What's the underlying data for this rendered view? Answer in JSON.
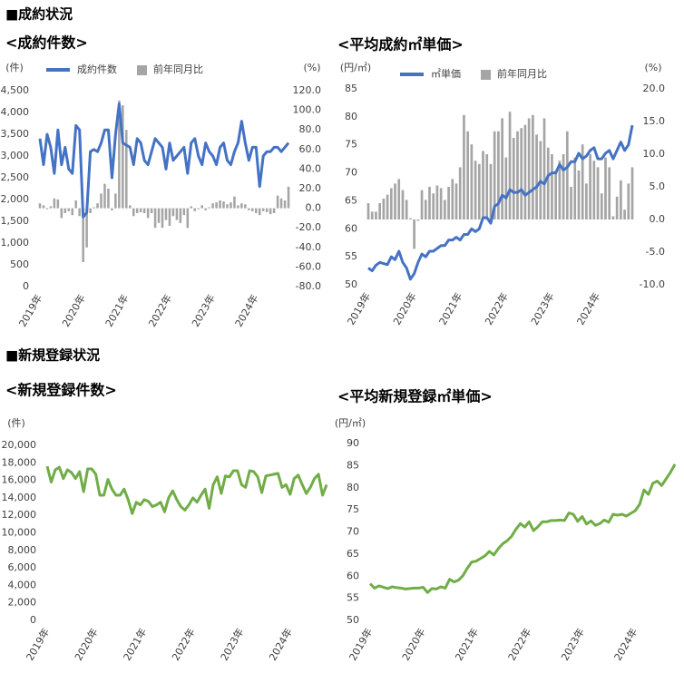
{
  "sections": [
    "■成約状況",
    "■新規登録状況"
  ],
  "chart_data": [
    {
      "type": "combo",
      "title": "<成約件数>",
      "y_unit": "(件)",
      "y2_unit": "(%)",
      "categories": [
        "2019年",
        null,
        null,
        null,
        null,
        null,
        null,
        null,
        null,
        null,
        null,
        null,
        "2020年",
        null,
        null,
        null,
        null,
        null,
        null,
        null,
        null,
        null,
        null,
        null,
        "2021年",
        null,
        null,
        null,
        null,
        null,
        null,
        null,
        null,
        null,
        null,
        null,
        "2022年",
        null,
        null,
        null,
        null,
        null,
        null,
        null,
        null,
        null,
        null,
        null,
        "2023年",
        null,
        null,
        null,
        null,
        null,
        null,
        null,
        null,
        null,
        null,
        null,
        "2024年",
        null,
        null,
        null,
        null,
        null,
        null,
        null,
        null,
        null
      ],
      "series": [
        {
          "name": "成約件数",
          "type": "line",
          "color": "#4472c4",
          "values": [
            3400,
            2800,
            3500,
            3200,
            2600,
            3600,
            2800,
            3200,
            2700,
            2600,
            3700,
            3600,
            1600,
            1700,
            3100,
            3150,
            3100,
            3300,
            3600,
            3600,
            2500,
            3500,
            4200,
            3300,
            3250,
            3200,
            2800,
            3400,
            3300,
            2900,
            2800,
            3100,
            3400,
            3300,
            3200,
            2700,
            3300,
            2900,
            3000,
            3100,
            3200,
            2600,
            3300,
            3400,
            3000,
            2800,
            3300,
            3100,
            3000,
            2800,
            3200,
            3300,
            2900,
            2800,
            3100,
            3300,
            3800,
            3300,
            2900,
            3200,
            3200,
            2300,
            3000,
            3100,
            3100,
            3200,
            3200,
            3100,
            3200,
            3300
          ]
        },
        {
          "name": "前年同月比",
          "type": "bar",
          "axis": "y2",
          "color": "#a5a5a5",
          "values": [
            5,
            3,
            -1,
            2,
            10,
            9,
            -10,
            -5,
            -3,
            -7,
            8,
            -8,
            -55,
            -40,
            -5,
            1,
            5,
            15,
            25,
            20,
            -2,
            15,
            110,
            105,
            80,
            3,
            -8,
            -5,
            -4,
            -5,
            -10,
            -5,
            -20,
            -15,
            -20,
            -12,
            -18,
            -8,
            -12,
            -15,
            -7,
            -20,
            2,
            -3,
            -1,
            3,
            -2,
            1,
            5,
            6,
            8,
            7,
            4,
            6,
            12,
            3,
            5,
            4,
            -2,
            -3,
            -5,
            -7,
            -3,
            -4,
            -6,
            -5,
            13,
            10,
            8,
            22
          ]
        }
      ],
      "ylim": [
        0,
        4500
      ],
      "yticks": [
        0,
        500,
        {
          "value": 1000,
          "label": "1,000"
        },
        {
          "value": 1500,
          "label": "1,500"
        },
        {
          "value": 2000,
          "label": "2,000"
        },
        {
          "value": 2500,
          "label": "2,500"
        },
        {
          "value": 3000,
          "label": "3,000"
        },
        {
          "value": 3500,
          "label": "3,500"
        },
        {
          "value": 4000,
          "label": "4,000"
        },
        {
          "value": 4500,
          "label": "4,500"
        }
      ],
      "y2lim": [
        -80,
        120
      ],
      "y2ticks": [
        {
          "value": -80,
          "label": "-80.0"
        },
        {
          "value": -60,
          "label": "-60.0"
        },
        {
          "value": -40,
          "label": "-40.0"
        },
        {
          "value": -20,
          "label": "-20.0"
        },
        {
          "value": 0,
          "label": "0.0"
        },
        {
          "value": 20,
          "label": "20.0"
        },
        {
          "value": 40,
          "label": "40.0"
        },
        {
          "value": 60,
          "label": "60.0"
        },
        {
          "value": 80,
          "label": "80.0"
        },
        {
          "value": 100,
          "label": "100.0"
        },
        {
          "value": 120,
          "label": "120.0"
        }
      ],
      "y2_negative_color": "#ff0000"
    },
    {
      "type": "combo",
      "title": "<平均成約㎡単価>",
      "y_unit": "(円/㎡)",
      "y2_unit": "(%)",
      "categories": [
        "2019年",
        null,
        null,
        null,
        null,
        null,
        null,
        null,
        null,
        null,
        null,
        null,
        "2020年",
        null,
        null,
        null,
        null,
        null,
        null,
        null,
        null,
        null,
        null,
        null,
        "2021年",
        null,
        null,
        null,
        null,
        null,
        null,
        null,
        null,
        null,
        null,
        null,
        "2022年",
        null,
        null,
        null,
        null,
        null,
        null,
        null,
        null,
        null,
        null,
        null,
        "2023年",
        null,
        null,
        null,
        null,
        null,
        null,
        null,
        null,
        null,
        null,
        null,
        "2024年",
        null,
        null,
        null,
        null,
        null,
        null,
        null,
        null,
        null
      ],
      "series": [
        {
          "name": "㎡単価",
          "type": "line",
          "color": "#4472c4",
          "values": [
            53,
            52.5,
            53.5,
            54,
            53.8,
            53.6,
            55,
            54.5,
            56,
            54,
            53,
            51,
            52,
            54,
            55.5,
            55,
            56,
            56,
            56.5,
            57,
            57,
            58,
            58,
            58.5,
            58,
            59,
            59,
            60,
            59.5,
            60,
            62,
            62,
            61,
            64,
            64.5,
            66,
            65.5,
            67,
            66.5,
            66.5,
            67,
            66,
            66.5,
            67,
            67.5,
            68.5,
            68,
            69.5,
            70,
            70,
            71.5,
            70.5,
            71,
            72,
            72,
            73.5,
            72.5,
            73,
            74,
            74.5,
            72.5,
            72.5,
            73.5,
            74,
            72.5,
            74,
            75.5,
            74,
            75,
            78.5
          ]
        },
        {
          "name": "前年同月比",
          "type": "bar",
          "axis": "y2",
          "color": "#a5a5a5",
          "values": [
            2.5,
            1.2,
            1.2,
            2.5,
            3.2,
            3.8,
            4.8,
            5.5,
            6.2,
            4.5,
            3,
            0.2,
            -4.5,
            -0.2,
            4.5,
            3,
            5,
            4,
            5.2,
            4.8,
            3,
            5,
            6.2,
            5.5,
            8,
            16,
            13.5,
            11.5,
            9,
            8.5,
            10.5,
            10,
            8.5,
            13.5,
            13.5,
            15.5,
            9.5,
            16.5,
            12.5,
            13.5,
            14,
            14.5,
            15.5,
            16,
            13,
            12,
            15.5,
            11,
            10,
            7.5,
            9,
            10,
            13.5,
            5,
            9.5,
            7.5,
            11.5,
            5.5,
            10,
            9,
            8,
            4,
            9.5,
            8,
            0.5,
            3.5,
            6,
            1.5,
            5.5,
            8
          ]
        }
      ],
      "ylim": [
        50,
        85
      ],
      "yticks": [
        50,
        55,
        60,
        65,
        70,
        75,
        80,
        85
      ],
      "y2lim": [
        -10,
        20
      ],
      "y2ticks": [
        {
          "value": -10,
          "label": "-10.0"
        },
        {
          "value": -5,
          "label": "-5.0"
        },
        {
          "value": 0,
          "label": "0.0"
        },
        {
          "value": 5,
          "label": "5.0"
        },
        {
          "value": 10,
          "label": "10.0"
        },
        {
          "value": 15,
          "label": "15.0"
        },
        {
          "value": 20,
          "label": "20.0"
        }
      ],
      "y2_negative_color": "#ff0000"
    },
    {
      "type": "line",
      "title": "<新規登録件数>",
      "y_unit": "(件)",
      "categories": [
        "2019年",
        null,
        null,
        null,
        null,
        null,
        null,
        null,
        null,
        null,
        null,
        null,
        "2020年",
        null,
        null,
        null,
        null,
        null,
        null,
        null,
        null,
        null,
        null,
        null,
        "2021年",
        null,
        null,
        null,
        null,
        null,
        null,
        null,
        null,
        null,
        null,
        null,
        "2022年",
        null,
        null,
        null,
        null,
        null,
        null,
        null,
        null,
        null,
        null,
        null,
        "2023年",
        null,
        null,
        null,
        null,
        null,
        null,
        null,
        null,
        null,
        null,
        null,
        "2024年",
        null,
        null,
        null,
        null,
        null,
        null,
        null,
        null,
        null
      ],
      "series": [
        {
          "type": "line",
          "color": "#70ad47",
          "values": [
            17600,
            15800,
            17200,
            17500,
            16200,
            17200,
            16900,
            16200,
            17000,
            14700,
            17300,
            17300,
            16700,
            14300,
            14300,
            16100,
            15000,
            14300,
            14300,
            15000,
            13800,
            12200,
            13500,
            13200,
            13800,
            13600,
            13000,
            13200,
            13500,
            12400,
            14000,
            14800,
            13800,
            13000,
            12600,
            13200,
            14000,
            13500,
            14300,
            15000,
            12800,
            15500,
            16400,
            14500,
            16500,
            16400,
            17100,
            17100,
            15500,
            15200,
            17100,
            17000,
            16400,
            14600,
            16500,
            16600,
            16700,
            16800,
            15200,
            15500,
            14400,
            16200,
            16600,
            15500,
            14500,
            15200,
            16200,
            16700,
            14300,
            15500
          ]
        }
      ],
      "ylim": [
        0,
        20000
      ],
      "yticks": [
        0,
        {
          "value": 2000,
          "label": "2,000"
        },
        {
          "value": 4000,
          "label": "4,000"
        },
        {
          "value": 6000,
          "label": "6,000"
        },
        {
          "value": 8000,
          "label": "8,000"
        },
        {
          "value": 10000,
          "label": "10,000"
        },
        {
          "value": 12000,
          "label": "12,000"
        },
        {
          "value": 14000,
          "label": "14,000"
        },
        {
          "value": 16000,
          "label": "16,000"
        },
        {
          "value": 18000,
          "label": "18,000"
        },
        {
          "value": 20000,
          "label": "20,000"
        }
      ]
    },
    {
      "type": "line",
      "title": "<平均新規登録㎡単価>",
      "y_unit": "(円/㎡)",
      "categories": [
        "2019年",
        null,
        null,
        null,
        null,
        null,
        null,
        null,
        null,
        null,
        null,
        null,
        "2020年",
        null,
        null,
        null,
        null,
        null,
        null,
        null,
        null,
        null,
        null,
        null,
        "2021年",
        null,
        null,
        null,
        null,
        null,
        null,
        null,
        null,
        null,
        null,
        null,
        "2022年",
        null,
        null,
        null,
        null,
        null,
        null,
        null,
        null,
        null,
        null,
        null,
        "2023年",
        null,
        null,
        null,
        null,
        null,
        null,
        null,
        null,
        null,
        null,
        null,
        "2024年",
        null,
        null,
        null,
        null,
        null,
        null,
        null,
        null,
        null
      ],
      "series": [
        {
          "type": "line",
          "color": "#70ad47",
          "values": [
            58.3,
            57.3,
            57.8,
            57.5,
            57.2,
            57.6,
            57.4,
            57.3,
            57.1,
            57.2,
            57.3,
            57.3,
            57.5,
            56.3,
            57.2,
            57.1,
            57.6,
            57.3,
            59.3,
            58.7,
            59.1,
            60.1,
            61.8,
            63.2,
            63.4,
            64,
            64.6,
            65.6,
            64.8,
            66.2,
            67.3,
            68,
            69,
            70.6,
            71.9,
            71.1,
            72.3,
            70.3,
            71.2,
            72.3,
            72.3,
            72.6,
            72.6,
            72.7,
            72.6,
            74.3,
            74,
            72.4,
            73.5,
            71.8,
            72.5,
            71.5,
            71.9,
            72.7,
            72.2,
            74,
            73.8,
            74,
            73.6,
            74.2,
            74.8,
            76.2,
            79.5,
            78.5,
            81,
            81.5,
            80.5,
            82,
            83.5,
            85.3
          ]
        }
      ],
      "ylim": [
        50,
        90
      ],
      "yticks": [
        50,
        55,
        60,
        65,
        70,
        75,
        80,
        85,
        90
      ]
    }
  ]
}
